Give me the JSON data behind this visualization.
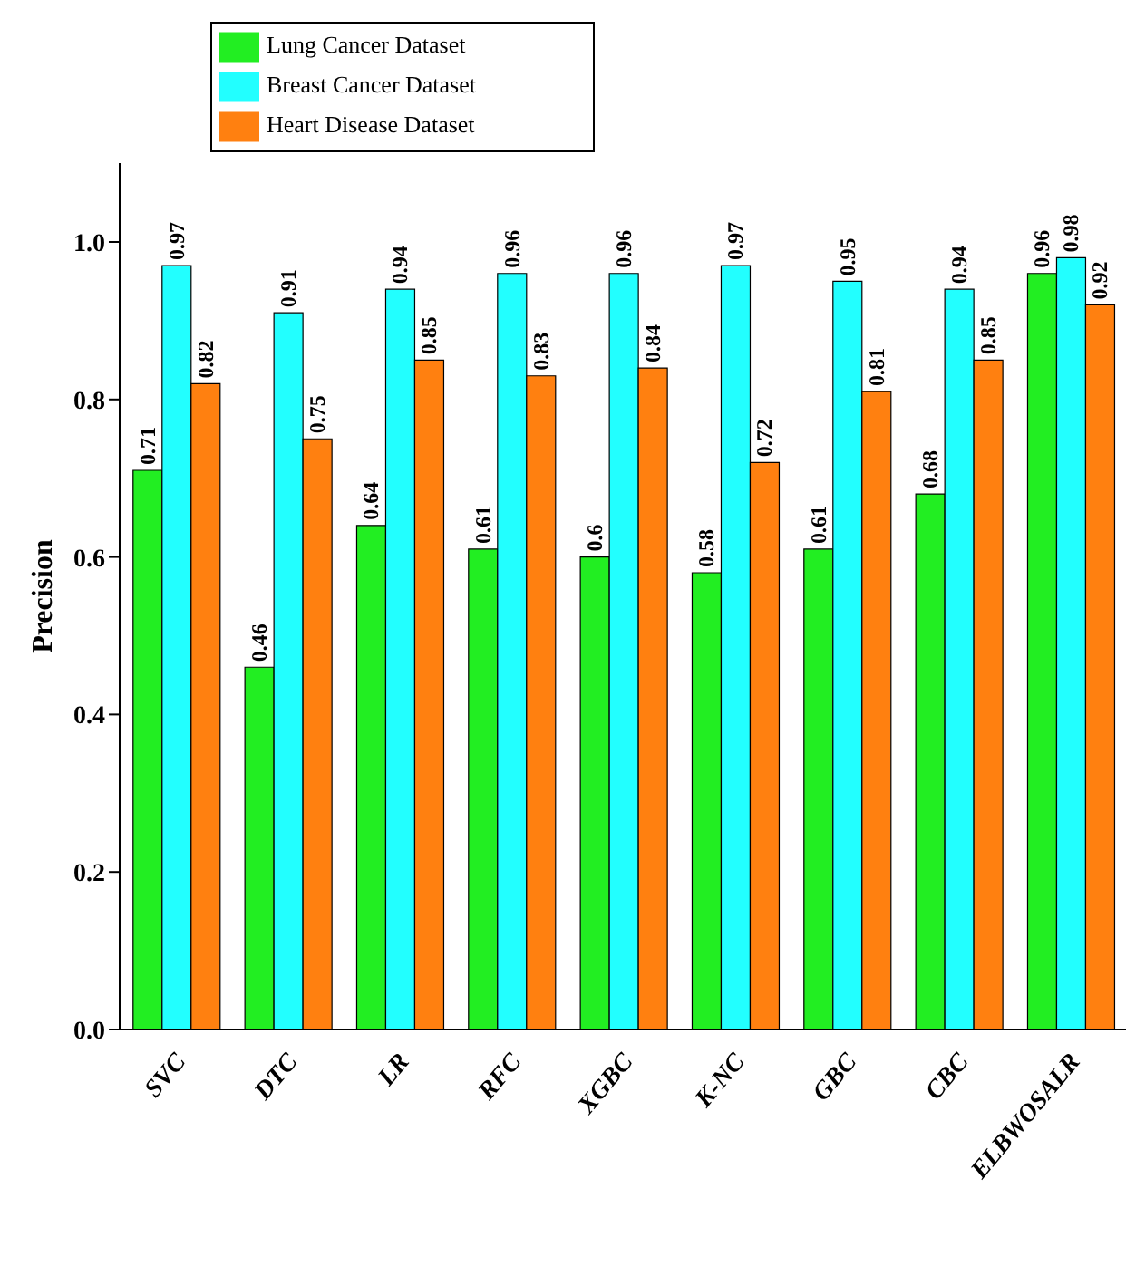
{
  "chart_data": {
    "type": "bar",
    "ylabel": "Precision",
    "categories": [
      "SVC",
      "DTC",
      "LR",
      "RFC",
      "XGBC",
      "K-NC",
      "GBC",
      "CBC",
      "ELBWOSALR"
    ],
    "series": [
      {
        "name": "Lung Cancer Dataset",
        "color": "#22ee22",
        "values": [
          0.71,
          0.46,
          0.64,
          0.61,
          0.6,
          0.58,
          0.61,
          0.68,
          0.96
        ]
      },
      {
        "name": "Breast Cancer Dataset",
        "color": "#22ffff",
        "values": [
          0.97,
          0.91,
          0.94,
          0.96,
          0.96,
          0.97,
          0.95,
          0.94,
          0.98
        ]
      },
      {
        "name": "Heart Disease Dataset",
        "color": "#ff8010",
        "values": [
          0.82,
          0.75,
          0.85,
          0.83,
          0.84,
          0.72,
          0.81,
          0.85,
          0.92
        ]
      }
    ],
    "ylim": [
      0,
      1.1
    ],
    "yticks": [
      {
        "value": 0,
        "label": "0.0"
      },
      0.2,
      0.4,
      0.6,
      0.8,
      {
        "value": 1,
        "label": "1.0"
      }
    ],
    "data_labels": true,
    "legend": "top left",
    "grid": false
  }
}
